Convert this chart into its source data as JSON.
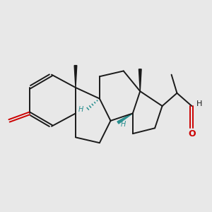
{
  "bg": "#e8e8e8",
  "bc": "#1a1a1a",
  "oc": "#cc0000",
  "hc": "#2a9090",
  "lw": 1.4,
  "xlim": [
    -0.5,
    11.0
  ],
  "ylim": [
    1.5,
    9.5
  ]
}
